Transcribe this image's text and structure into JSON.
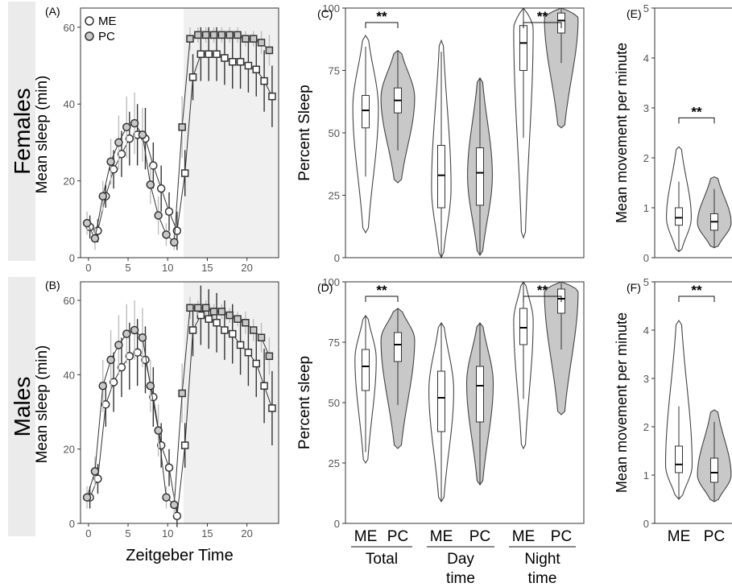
{
  "row_labels": [
    "Females",
    "Males"
  ],
  "chart_data": [
    {
      "panel": "(A)",
      "type": "line",
      "ylabel": "Mean sleep (min)",
      "xlabel": "",
      "xlim": [
        -1,
        24
      ],
      "ylim": [
        0,
        65
      ],
      "xticks": [
        "0",
        "5",
        "10",
        "15",
        "20"
      ],
      "yticks": [
        "0",
        "20",
        "40",
        "60"
      ],
      "shaded_from_x": 12,
      "legend": {
        "placement": "top-left",
        "entries": [
          "ME",
          "PC"
        ]
      },
      "x": [
        0,
        1,
        2,
        3,
        4,
        5,
        6,
        7,
        8,
        9,
        10,
        11,
        12,
        13,
        14,
        15,
        16,
        17,
        18,
        19,
        20,
        21,
        22,
        23
      ],
      "series": [
        {
          "name": "ME",
          "values": [
            8,
            7,
            16,
            23,
            27,
            31,
            32,
            31,
            24,
            18,
            12,
            7,
            22,
            47,
            53,
            53,
            53,
            52,
            51,
            51,
            50,
            49,
            46,
            42
          ],
          "err": [
            3,
            3,
            3,
            5,
            6,
            7,
            8,
            8,
            6,
            6,
            5,
            5,
            6,
            6,
            7,
            7,
            7,
            7,
            7,
            7,
            7,
            7,
            8,
            8
          ]
        },
        {
          "name": "PC",
          "values": [
            9,
            5,
            16,
            25,
            30,
            34,
            35,
            32,
            19,
            11,
            6,
            4,
            34,
            57,
            58,
            58,
            58,
            58,
            58,
            58,
            57,
            57,
            56,
            54
          ],
          "err": [
            3,
            3,
            4,
            6,
            7,
            8,
            8,
            7,
            5,
            5,
            3,
            2,
            8,
            3,
            2,
            2,
            2,
            2,
            2,
            2,
            2,
            2,
            3,
            4
          ]
        }
      ]
    },
    {
      "panel": "(B)",
      "type": "line",
      "ylabel": "Mean sleep (min)",
      "xlabel": "Zeitgeber Time",
      "xlim": [
        -1,
        24
      ],
      "ylim": [
        0,
        65
      ],
      "xticks": [
        "0",
        "5",
        "10",
        "15",
        "20"
      ],
      "yticks": [
        "0",
        "20",
        "40",
        "60"
      ],
      "shaded_from_x": 12,
      "x": [
        0,
        1,
        2,
        3,
        4,
        5,
        6,
        7,
        8,
        9,
        10,
        11,
        12,
        13,
        14,
        15,
        16,
        17,
        18,
        19,
        20,
        21,
        22,
        23
      ],
      "series": [
        {
          "name": "ME",
          "values": [
            7,
            12,
            32,
            38,
            42,
            45,
            46,
            44,
            34,
            21,
            15,
            2,
            21,
            52,
            56,
            55,
            54,
            52,
            51,
            48,
            46,
            43,
            37,
            31
          ],
          "err": [
            3,
            4,
            6,
            8,
            8,
            9,
            9,
            9,
            8,
            6,
            5,
            3,
            6,
            7,
            8,
            8,
            8,
            8,
            8,
            8,
            9,
            9,
            10,
            10
          ]
        },
        {
          "name": "PC",
          "values": [
            7,
            14,
            37,
            44,
            48,
            51,
            52,
            50,
            37,
            25,
            7,
            5,
            35,
            58,
            58,
            58,
            57,
            57,
            56,
            55,
            54,
            52,
            50,
            45
          ],
          "err": [
            3,
            4,
            7,
            8,
            8,
            8,
            8,
            8,
            7,
            7,
            3,
            3,
            8,
            3,
            2,
            2,
            2,
            2,
            2,
            2,
            3,
            3,
            4,
            5
          ]
        }
      ]
    },
    {
      "panel": "(C)",
      "type": "violin",
      "ylabel": "Percent Sleep",
      "ylim": [
        0,
        100
      ],
      "yticks": [
        "0",
        "25",
        "50",
        "75",
        "100"
      ],
      "categories": [
        "ME",
        "PC",
        "ME",
        "PC",
        "ME",
        "PC"
      ],
      "groups": [
        {
          "label": "Total",
          "significance": "**"
        },
        {
          "label": "Day time",
          "significance": ""
        },
        {
          "label": "Night time",
          "significance": "**"
        }
      ],
      "boxes": [
        {
          "group": "ME",
          "q1": 52,
          "median": 59,
          "q3": 65,
          "min": 10,
          "max": 89,
          "mode": 60,
          "width": 0.72
        },
        {
          "group": "PC",
          "q1": 58,
          "median": 63,
          "q3": 68,
          "min": 30,
          "max": 83,
          "mode": 64,
          "width": 0.95
        },
        {
          "group": "ME",
          "q1": 20,
          "median": 33,
          "q3": 45,
          "min": 0,
          "max": 87,
          "mode": 28,
          "width": 0.55
        },
        {
          "group": "PC",
          "q1": 21,
          "median": 34,
          "q3": 44,
          "min": 1,
          "max": 72,
          "mode": 33,
          "width": 0.7
        },
        {
          "group": "ME",
          "q1": 75,
          "median": 86,
          "q3": 93,
          "min": 8,
          "max": 100,
          "mode": 92,
          "width": 0.55
        },
        {
          "group": "PC",
          "q1": 90,
          "median": 95,
          "q3": 98,
          "min": 52,
          "max": 100,
          "mode": 96,
          "width": 0.95
        }
      ]
    },
    {
      "panel": "(D)",
      "type": "violin",
      "ylabel": "Percent sleep",
      "ylim": [
        0,
        100
      ],
      "yticks": [
        "0",
        "25",
        "50",
        "75",
        "100"
      ],
      "categories": [
        "ME",
        "PC",
        "ME",
        "PC",
        "ME",
        "PC"
      ],
      "groups": [
        {
          "label": "Total",
          "significance": "**"
        },
        {
          "label": "Day time",
          "significance": ""
        },
        {
          "label": "Night time",
          "significance": "**"
        }
      ],
      "boxes": [
        {
          "group": "ME",
          "q1": 55,
          "median": 65,
          "q3": 72,
          "min": 25,
          "max": 86,
          "mode": 68,
          "width": 0.6
        },
        {
          "group": "PC",
          "q1": 67,
          "median": 74,
          "q3": 79,
          "min": 31,
          "max": 89,
          "mode": 76,
          "width": 0.95
        },
        {
          "group": "ME",
          "q1": 38,
          "median": 52,
          "q3": 63,
          "min": 9,
          "max": 83,
          "mode": 55,
          "width": 0.7
        },
        {
          "group": "PC",
          "q1": 42,
          "median": 57,
          "q3": 65,
          "min": 16,
          "max": 83,
          "mode": 58,
          "width": 0.75
        },
        {
          "group": "ME",
          "q1": 74,
          "median": 81,
          "q3": 89,
          "min": 31,
          "max": 100,
          "mode": 84,
          "width": 0.55
        },
        {
          "group": "PC",
          "q1": 87,
          "median": 93,
          "q3": 97,
          "min": 45,
          "max": 100,
          "mode": 96,
          "width": 0.95
        }
      ]
    },
    {
      "panel": "(E)",
      "type": "violin",
      "ylabel": "Mean movement per minute",
      "ylim": [
        0,
        5
      ],
      "yticks": [
        "0",
        "1",
        "2",
        "3",
        "4",
        "5"
      ],
      "categories": [
        "ME",
        "PC"
      ],
      "significance": "**",
      "boxes": [
        {
          "group": "ME",
          "q1": 0.65,
          "median": 0.8,
          "q3": 1.0,
          "min": 0.12,
          "max": 2.22,
          "mode": 0.8,
          "width": 0.7
        },
        {
          "group": "PC",
          "q1": 0.55,
          "median": 0.72,
          "q3": 0.88,
          "min": 0.2,
          "max": 1.62,
          "mode": 0.7,
          "width": 0.95
        }
      ]
    },
    {
      "panel": "(F)",
      "type": "violin",
      "ylabel": "Mean movement per minute",
      "ylim": [
        0,
        5
      ],
      "yticks": [
        "0",
        "1",
        "2",
        "3",
        "4",
        "5"
      ],
      "categories": [
        "ME",
        "PC"
      ],
      "significance": "**",
      "boxes": [
        {
          "group": "ME",
          "q1": 1.05,
          "median": 1.22,
          "q3": 1.6,
          "min": 0.5,
          "max": 4.2,
          "mode": 1.2,
          "width": 0.75
        },
        {
          "group": "PC",
          "q1": 0.85,
          "median": 1.05,
          "q3": 1.35,
          "min": 0.45,
          "max": 2.35,
          "mode": 1.0,
          "width": 0.95
        }
      ]
    }
  ],
  "colors": {
    "me_fill": "#ffffff",
    "pc_fill": "#c8c8c8",
    "stroke": "#333333",
    "shade": "#f0f0f0",
    "row_band": "#ebebeb",
    "grey_err": "#bdbdbd"
  }
}
